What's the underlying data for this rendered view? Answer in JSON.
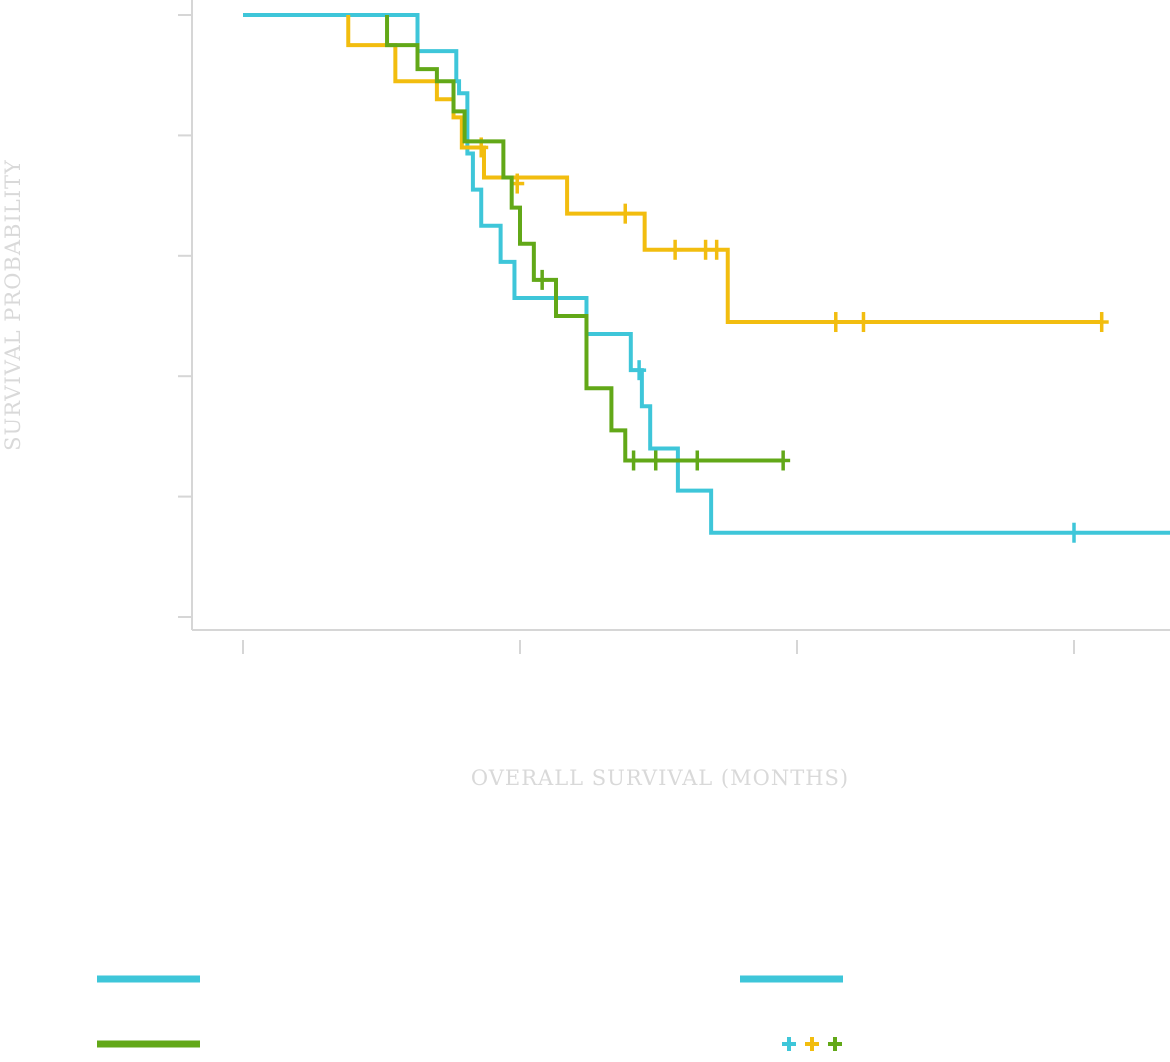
{
  "chart_data": {
    "type": "line",
    "subtype": "kaplan-meier step",
    "xlabel": "OVERALL SURVIVAL (MONTHS)",
    "ylabel": "SURVIVAL PROBABILITY",
    "xlim": [
      -0.18,
      3.35
    ],
    "ylim": [
      -0.02,
      1.02
    ],
    "x_ticks": [
      0,
      1,
      2,
      3
    ],
    "y_ticks": [
      0,
      0.2,
      0.4,
      0.6,
      0.8,
      1.0
    ],
    "tick_labels_shown": false,
    "grid": false,
    "colors": {
      "cyan": "#3ec6d9",
      "yellow": "#f2bd0f",
      "green": "#62a818",
      "axis": "#d6d6d6"
    },
    "series": [
      {
        "color": "#3ec6d9",
        "steps": [
          [
            0.0,
            1.0
          ],
          [
            0.63,
            0.94
          ],
          [
            0.77,
            0.89
          ],
          [
            0.78,
            0.87
          ],
          [
            0.81,
            0.77
          ],
          [
            0.83,
            0.71
          ],
          [
            0.86,
            0.65
          ],
          [
            0.93,
            0.59
          ],
          [
            0.98,
            0.53
          ],
          [
            1.24,
            0.47
          ],
          [
            1.4,
            0.41
          ],
          [
            1.44,
            0.35
          ],
          [
            1.47,
            0.28
          ],
          [
            1.57,
            0.21
          ],
          [
            1.69,
            0.14
          ],
          [
            3.35,
            0.14
          ]
        ],
        "censored": [
          [
            1.43,
            0.41
          ],
          [
            3.0,
            0.14
          ]
        ]
      },
      {
        "color": "#f2bd0f",
        "steps": [
          [
            0.38,
            1.0
          ],
          [
            0.38,
            0.95
          ],
          [
            0.55,
            0.89
          ],
          [
            0.7,
            0.86
          ],
          [
            0.76,
            0.83
          ],
          [
            0.79,
            0.78
          ],
          [
            0.87,
            0.73
          ],
          [
            1.17,
            0.67
          ],
          [
            1.45,
            0.61
          ],
          [
            1.75,
            0.49
          ],
          [
            3.1,
            0.49
          ]
        ],
        "censored": [
          [
            0.86,
            0.78
          ],
          [
            0.99,
            0.72
          ],
          [
            1.38,
            0.67
          ],
          [
            1.56,
            0.61
          ],
          [
            1.67,
            0.61
          ],
          [
            1.71,
            0.61
          ],
          [
            2.14,
            0.49
          ],
          [
            2.24,
            0.49
          ],
          [
            3.1,
            0.49
          ]
        ]
      },
      {
        "color": "#62a818",
        "steps": [
          [
            0.52,
            1.0
          ],
          [
            0.52,
            0.95
          ],
          [
            0.63,
            0.91
          ],
          [
            0.7,
            0.89
          ],
          [
            0.76,
            0.84
          ],
          [
            0.8,
            0.79
          ],
          [
            0.94,
            0.73
          ],
          [
            0.97,
            0.68
          ],
          [
            1.0,
            0.62
          ],
          [
            1.05,
            0.56
          ],
          [
            1.13,
            0.5
          ],
          [
            1.24,
            0.38
          ],
          [
            1.33,
            0.31
          ],
          [
            1.38,
            0.26
          ],
          [
            1.95,
            0.26
          ]
        ],
        "censored": [
          [
            1.08,
            0.56
          ],
          [
            1.41,
            0.26
          ],
          [
            1.49,
            0.26
          ],
          [
            1.64,
            0.26
          ],
          [
            1.95,
            0.26
          ]
        ]
      }
    ],
    "legend": {
      "placement": "bottom",
      "items": [
        {
          "kind": "line",
          "color": "#3ec6d9",
          "column": "left",
          "row": 1
        },
        {
          "kind": "line",
          "color": "#62a818",
          "column": "left",
          "row": 2
        },
        {
          "kind": "line",
          "color": "#3ec6d9",
          "column": "right",
          "row": 1
        },
        {
          "kind": "censor-marks",
          "colors": [
            "#3ec6d9",
            "#f2bd0f",
            "#62a818"
          ],
          "column": "right",
          "row": 2
        }
      ]
    }
  }
}
